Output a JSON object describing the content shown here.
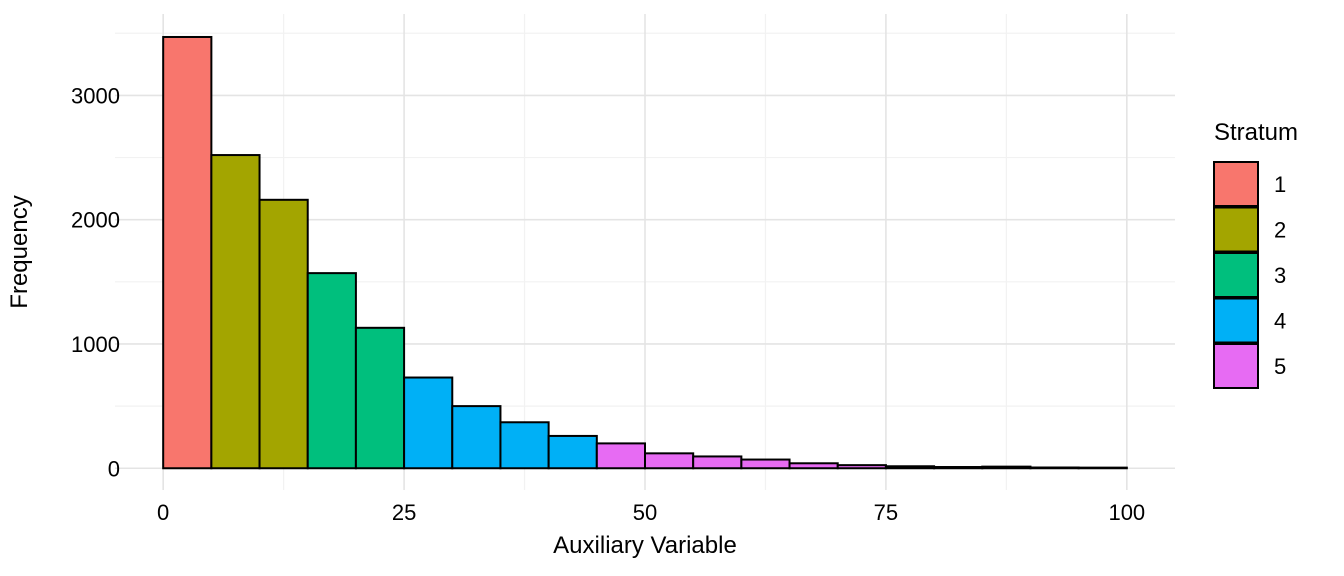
{
  "chart_data": {
    "type": "bar",
    "subtype": "histogram",
    "title": "",
    "xlabel": "Auxiliary Variable",
    "ylabel": "Frequency",
    "x_ticks": [
      0,
      25,
      50,
      75,
      100
    ],
    "y_ticks": [
      0,
      1000,
      2000,
      3000
    ],
    "x_minor_ticks": [
      12.5,
      37.5,
      62.5,
      87.5
    ],
    "y_minor_ticks": [
      500,
      1500,
      2500,
      3500
    ],
    "xlim": [
      -5,
      105
    ],
    "ylim": [
      -175,
      3655
    ],
    "grid": true,
    "legend_position": "right",
    "bin_width": 5,
    "bars": [
      {
        "x0": 0,
        "x1": 5,
        "count": 3470,
        "stratum": "1"
      },
      {
        "x0": 5,
        "x1": 10,
        "count": 2520,
        "stratum": "2"
      },
      {
        "x0": 10,
        "x1": 15,
        "count": 2160,
        "stratum": "2"
      },
      {
        "x0": 15,
        "x1": 20,
        "count": 1570,
        "stratum": "3"
      },
      {
        "x0": 20,
        "x1": 25,
        "count": 1130,
        "stratum": "3"
      },
      {
        "x0": 25,
        "x1": 30,
        "count": 730,
        "stratum": "4"
      },
      {
        "x0": 30,
        "x1": 35,
        "count": 500,
        "stratum": "4"
      },
      {
        "x0": 35,
        "x1": 40,
        "count": 370,
        "stratum": "4"
      },
      {
        "x0": 40,
        "x1": 45,
        "count": 260,
        "stratum": "4"
      },
      {
        "x0": 45,
        "x1": 50,
        "count": 200,
        "stratum": "5"
      },
      {
        "x0": 50,
        "x1": 55,
        "count": 120,
        "stratum": "5"
      },
      {
        "x0": 55,
        "x1": 60,
        "count": 95,
        "stratum": "5"
      },
      {
        "x0": 60,
        "x1": 65,
        "count": 70,
        "stratum": "5"
      },
      {
        "x0": 65,
        "x1": 70,
        "count": 40,
        "stratum": "5"
      },
      {
        "x0": 70,
        "x1": 75,
        "count": 25,
        "stratum": "5"
      },
      {
        "x0": 75,
        "x1": 80,
        "count": 16,
        "stratum": "5"
      },
      {
        "x0": 80,
        "x1": 85,
        "count": 10,
        "stratum": "5"
      },
      {
        "x0": 85,
        "x1": 90,
        "count": 13,
        "stratum": "5"
      },
      {
        "x0": 90,
        "x1": 95,
        "count": 6,
        "stratum": "5"
      },
      {
        "x0": 95,
        "x1": 100,
        "count": 5,
        "stratum": "5"
      }
    ],
    "legend": {
      "title": "Stratum",
      "entries": [
        {
          "label": "1",
          "color": "#F8766D"
        },
        {
          "label": "2",
          "color": "#A3A500"
        },
        {
          "label": "3",
          "color": "#00BF7D"
        },
        {
          "label": "4",
          "color": "#00B0F6"
        },
        {
          "label": "5",
          "color": "#E76BF3"
        }
      ]
    },
    "style": {
      "bar_stroke": "#000000",
      "bar_stroke_width": 2,
      "grid_major_color": "#E4E4E4",
      "grid_minor_color": "#F2F2F2",
      "background": "#FFFFFF",
      "text_color": "#000000"
    }
  }
}
